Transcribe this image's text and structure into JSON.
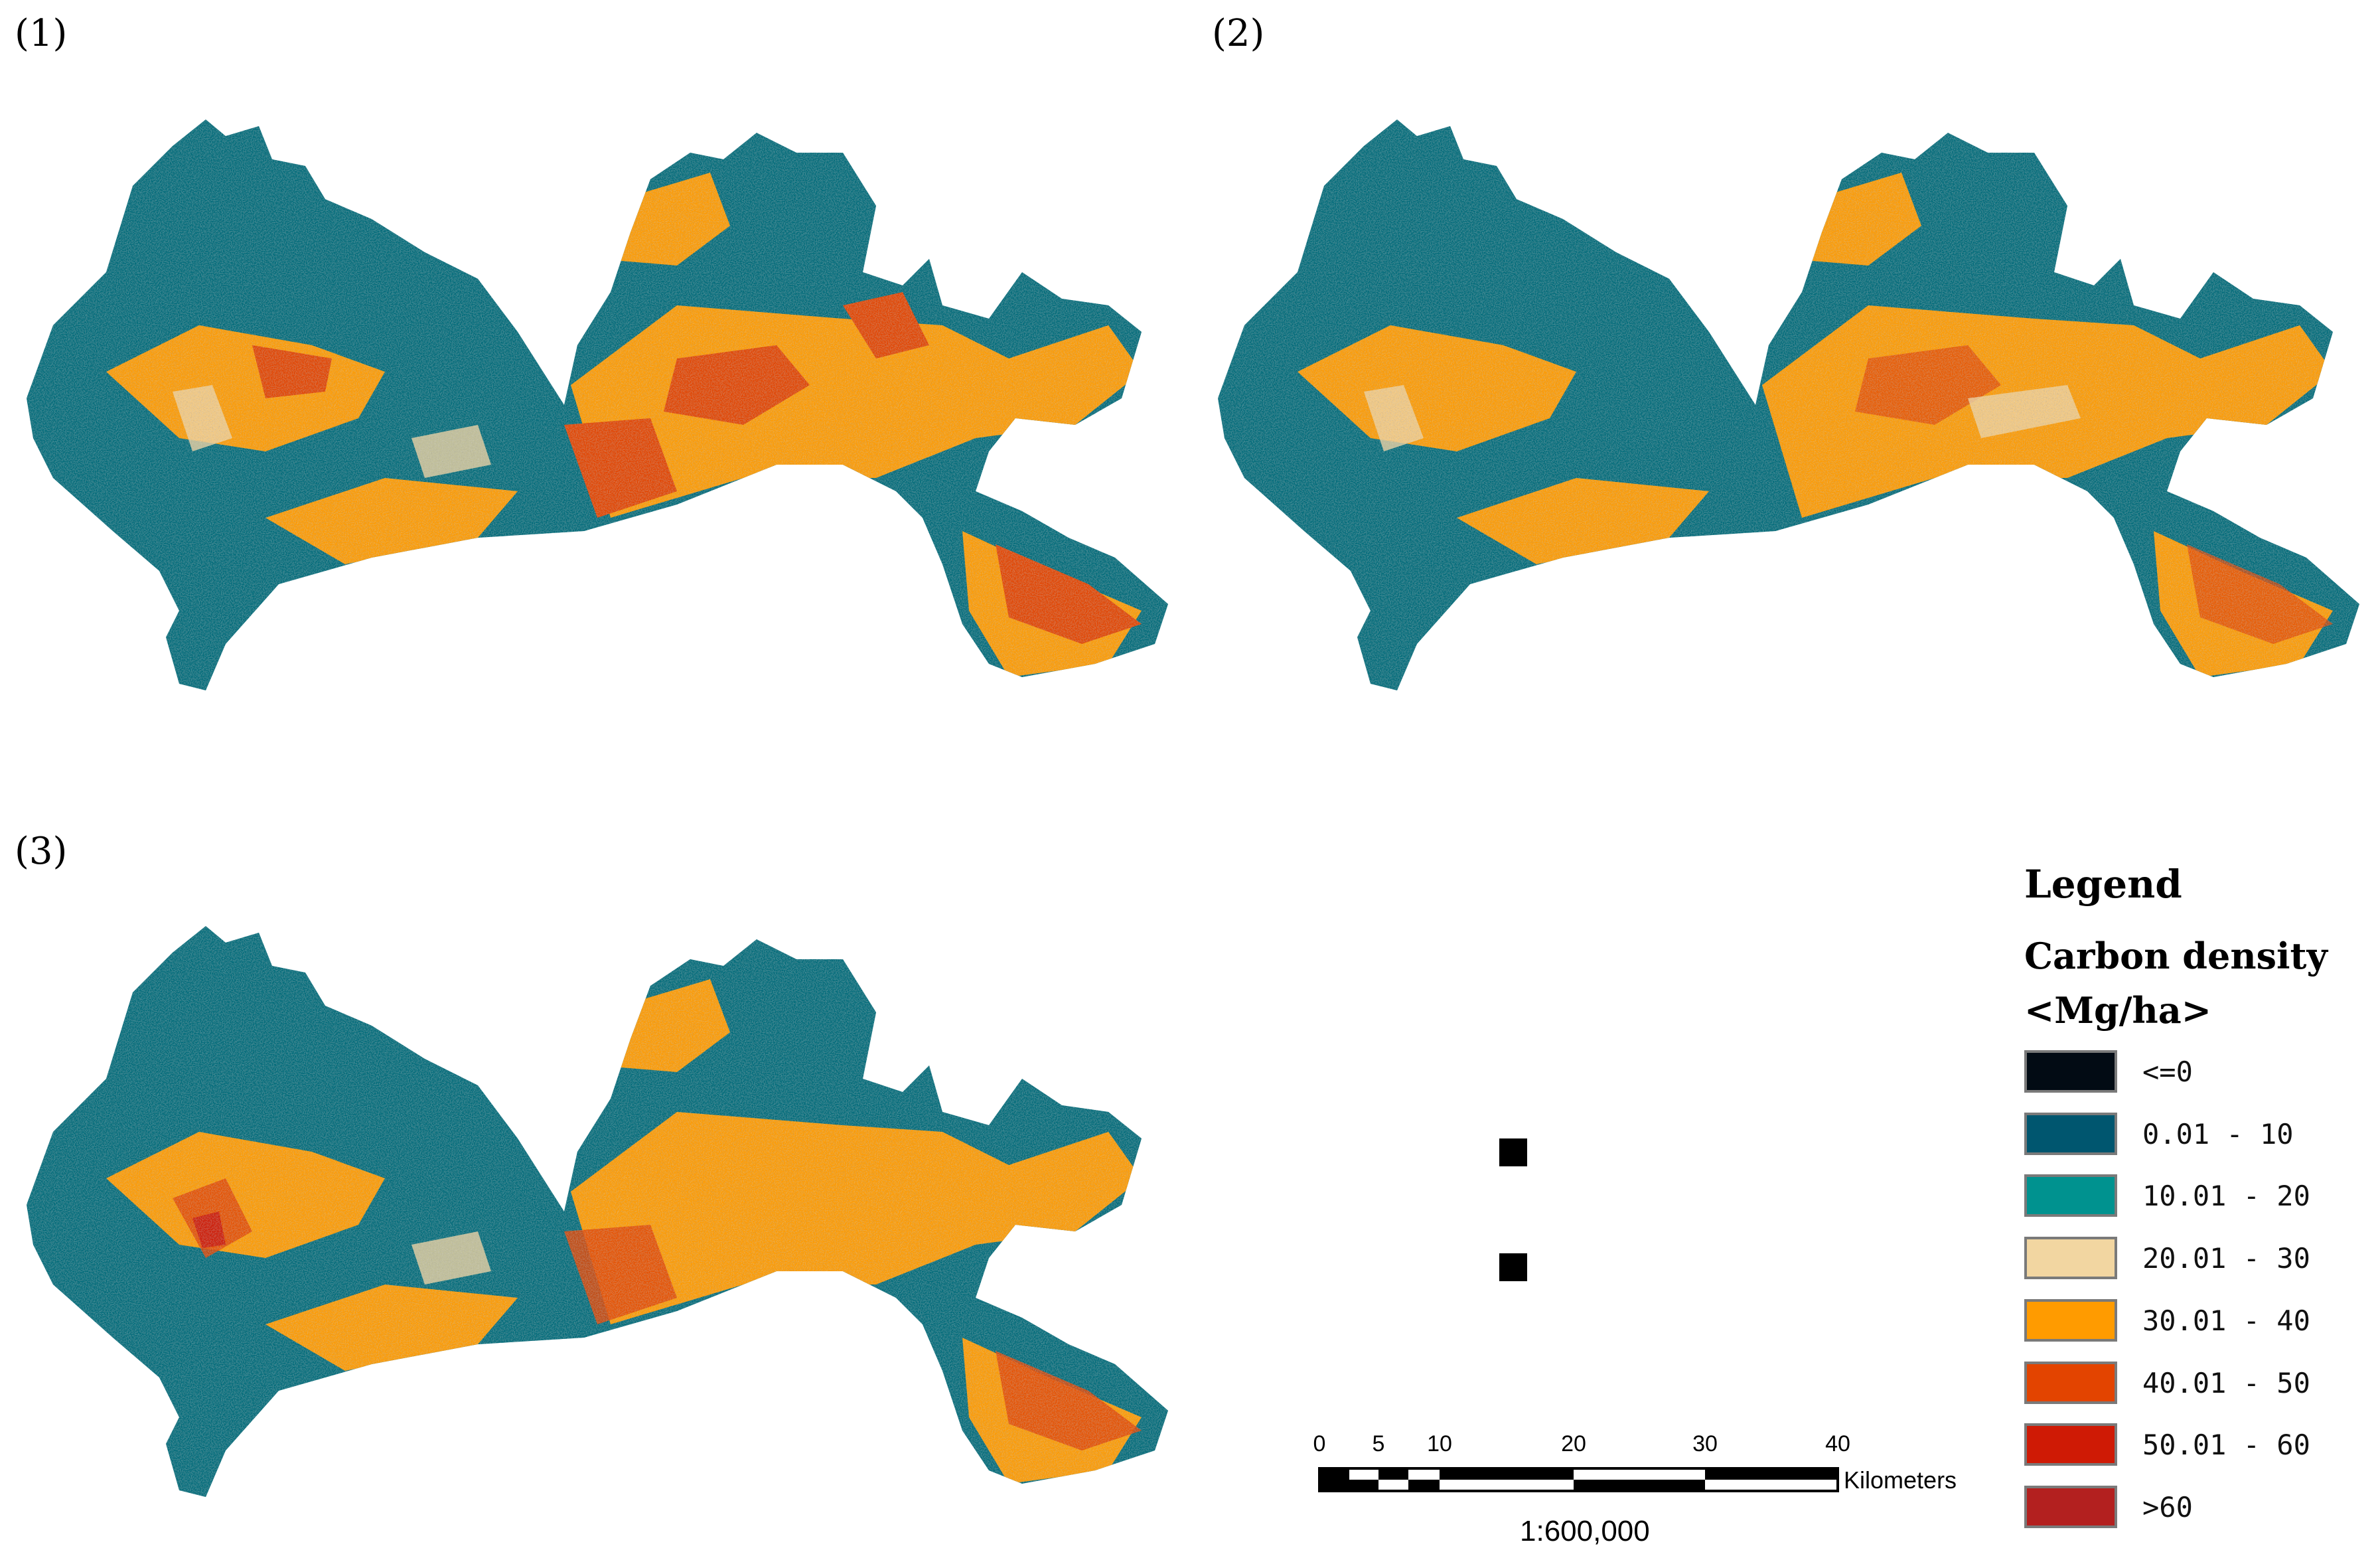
{
  "panels": [
    {
      "label": "(1)"
    },
    {
      "label": "(2)"
    },
    {
      "label": "(3)"
    }
  ],
  "legend": {
    "title": "Legend",
    "variable": "Carbon density",
    "unit": "<Mg/ha>",
    "classes": [
      {
        "label": "<=0",
        "color": "#020b14"
      },
      {
        "label": "0.01 - 10",
        "color": "#00566f"
      },
      {
        "label": "10.01 - 20",
        "color": "#00928f"
      },
      {
        "label": "20.01 - 30",
        "color": "#f2d6a1"
      },
      {
        "label": "30.01 - 40",
        "color": "#ff9b00"
      },
      {
        "label": "40.01 - 50",
        "color": "#e34400"
      },
      {
        "label": "50.01 - 60",
        "color": "#cf1a05"
      },
      {
        "label": ">60",
        "color": "#b3201f"
      }
    ]
  },
  "scalebar": {
    "ticks": [
      "0",
      "5",
      "10",
      "20",
      "30",
      "40"
    ],
    "unit": "Kilometers",
    "ratio": "1:600,000"
  }
}
